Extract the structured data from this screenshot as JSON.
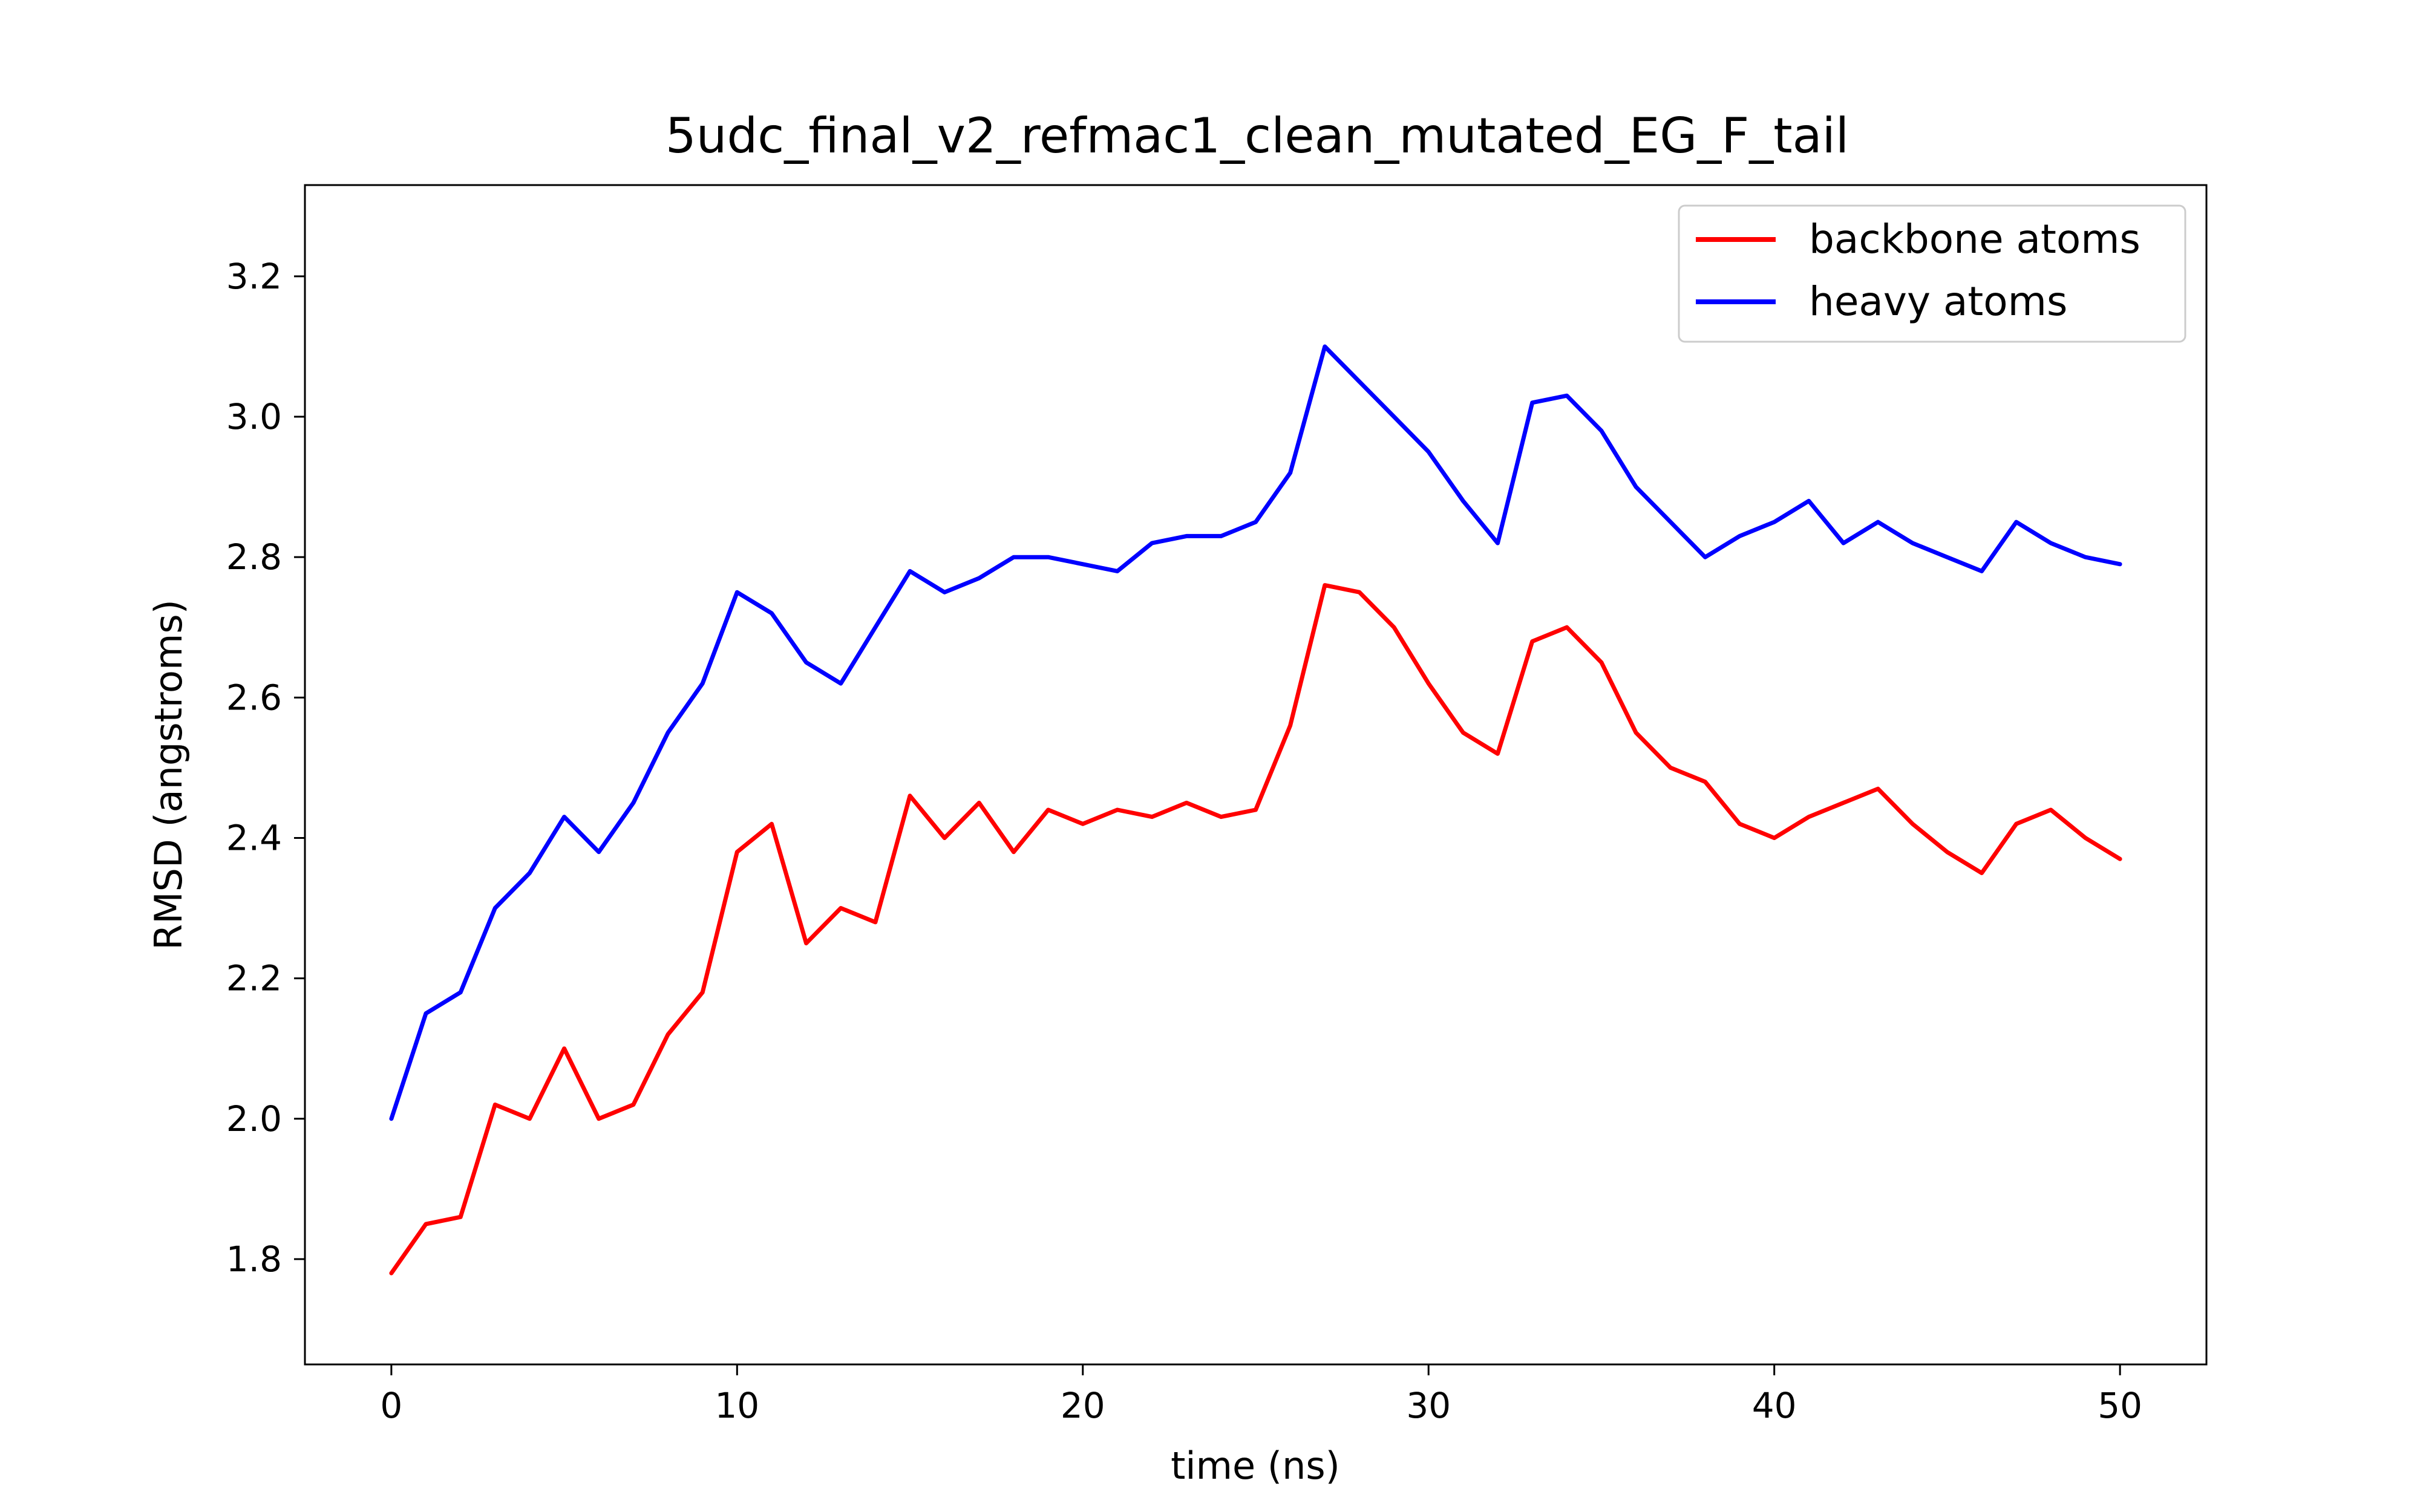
{
  "chart_data": {
    "type": "line",
    "title": "5udc_final_v2_refmac1_clean_mutated_EG_F_tail",
    "xlabel": "time (ns)",
    "ylabel": "RMSD (angstroms)",
    "xlim": [
      -2.5,
      52.5
    ],
    "ylim": [
      1.65,
      3.33
    ],
    "xticks": [
      0,
      10,
      20,
      30,
      40,
      50
    ],
    "xtick_labels": [
      "0",
      "10",
      "20",
      "30",
      "40",
      "50"
    ],
    "yticks": [
      1.8,
      2.0,
      2.2,
      2.4,
      2.6,
      2.8,
      3.0,
      3.2
    ],
    "ytick_labels": [
      "1.8",
      "2.0",
      "2.2",
      "2.4",
      "2.6",
      "2.8",
      "3.0",
      "3.2"
    ],
    "grid": false,
    "legend_position": "top-right",
    "series": [
      {
        "name": "backbone atoms",
        "color": "#ff0000",
        "x": [
          0,
          1,
          2,
          3,
          4,
          5,
          6,
          7,
          8,
          9,
          10,
          11,
          12,
          13,
          14,
          15,
          16,
          17,
          18,
          19,
          20,
          21,
          22,
          23,
          24,
          25,
          26,
          27,
          28,
          29,
          30,
          31,
          32,
          33,
          34,
          35,
          36,
          37,
          38,
          39,
          40,
          41,
          42,
          43,
          44,
          45,
          46,
          47,
          48,
          49,
          50
        ],
        "y": [
          1.78,
          1.85,
          1.86,
          2.02,
          2.0,
          2.1,
          2.0,
          2.02,
          2.12,
          2.18,
          2.38,
          2.42,
          2.25,
          2.3,
          2.28,
          2.46,
          2.4,
          2.45,
          2.38,
          2.44,
          2.42,
          2.44,
          2.43,
          2.45,
          2.43,
          2.44,
          2.56,
          2.76,
          2.75,
          2.7,
          2.62,
          2.55,
          2.52,
          2.68,
          2.7,
          2.65,
          2.55,
          2.5,
          2.48,
          2.42,
          2.4,
          2.43,
          2.45,
          2.47,
          2.42,
          2.38,
          2.35,
          2.42,
          2.44,
          2.4,
          2.37
        ]
      },
      {
        "name": "heavy atoms",
        "color": "#0000ff",
        "x": [
          0,
          1,
          2,
          3,
          4,
          5,
          6,
          7,
          8,
          9,
          10,
          11,
          12,
          13,
          14,
          15,
          16,
          17,
          18,
          19,
          20,
          21,
          22,
          23,
          24,
          25,
          26,
          27,
          28,
          29,
          30,
          31,
          32,
          33,
          34,
          35,
          36,
          37,
          38,
          39,
          40,
          41,
          42,
          43,
          44,
          45,
          46,
          47,
          48,
          49,
          50
        ],
        "y": [
          2.0,
          2.15,
          2.18,
          2.3,
          2.35,
          2.43,
          2.38,
          2.45,
          2.55,
          2.62,
          2.75,
          2.72,
          2.65,
          2.62,
          2.7,
          2.78,
          2.75,
          2.77,
          2.8,
          2.8,
          2.79,
          2.78,
          2.82,
          2.83,
          2.83,
          2.85,
          2.92,
          3.1,
          3.05,
          3.0,
          2.95,
          2.88,
          2.82,
          3.02,
          3.03,
          2.98,
          2.9,
          2.85,
          2.8,
          2.83,
          2.85,
          2.88,
          2.82,
          2.85,
          2.82,
          2.8,
          2.78,
          2.85,
          2.82,
          2.8,
          2.79
        ]
      }
    ]
  }
}
